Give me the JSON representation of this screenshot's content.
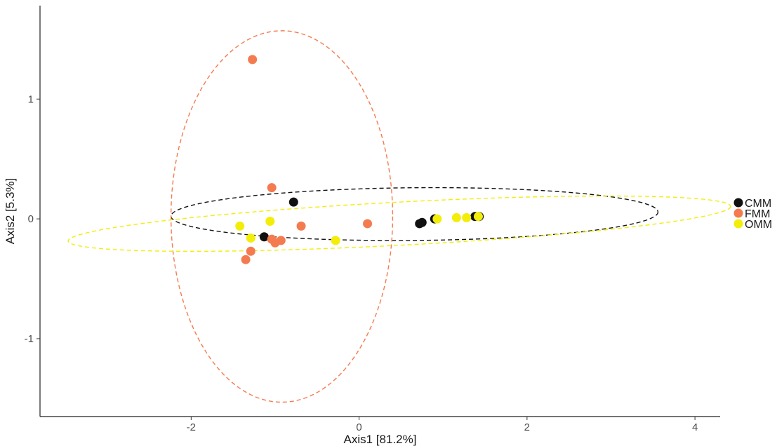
{
  "chart_data": {
    "type": "scatter",
    "title": "",
    "xlabel": "Axis1   [81.2%]",
    "ylabel": "Axis2   [5.3%]",
    "xlim": [
      -3.8,
      4.3
    ],
    "ylim": [
      -1.65,
      1.78
    ],
    "x_ticks": [
      -2,
      0,
      2,
      4
    ],
    "y_ticks": [
      -1,
      0,
      1
    ],
    "x_tick_labels": [
      "-2",
      "0",
      "2",
      "4"
    ],
    "y_tick_labels": [
      "-1",
      "0",
      "1"
    ],
    "grid": false,
    "legend_position": "right",
    "series": [
      {
        "name": "CMM",
        "color": "#111111",
        "points": [
          [
            -0.78,
            0.14
          ],
          [
            -1.13,
            -0.15
          ],
          [
            0.72,
            -0.04
          ],
          [
            0.75,
            -0.03
          ],
          [
            0.9,
            0.0
          ],
          [
            1.38,
            0.02
          ],
          [
            1.43,
            0.02
          ]
        ],
        "ellipse": {
          "cx": 0.66,
          "cy": 0.04,
          "rx": 2.9,
          "ry": 0.22,
          "angle_deg": 0.5
        }
      },
      {
        "name": "FMM",
        "color": "#F47B50",
        "points": [
          [
            -1.27,
            1.33
          ],
          [
            -1.04,
            0.26
          ],
          [
            -0.69,
            -0.06
          ],
          [
            0.1,
            -0.04
          ],
          [
            -1.04,
            -0.17
          ],
          [
            -1.0,
            -0.2
          ],
          [
            -0.93,
            -0.18
          ],
          [
            -1.29,
            -0.27
          ],
          [
            -1.35,
            -0.34
          ]
        ],
        "ellipse": {
          "cx": -0.92,
          "cy": 0.02,
          "rx": 1.32,
          "ry": 1.55,
          "angle_deg": 0
        }
      },
      {
        "name": "OMM",
        "color": "#F2EE0A",
        "points": [
          [
            -1.42,
            -0.06
          ],
          [
            -1.29,
            -0.16
          ],
          [
            -1.06,
            -0.02
          ],
          [
            -0.28,
            -0.18
          ],
          [
            0.93,
            0.0
          ],
          [
            1.16,
            0.01
          ],
          [
            1.28,
            0.01
          ],
          [
            1.42,
            0.02
          ]
        ],
        "ellipse": {
          "cx": 0.48,
          "cy": -0.04,
          "rx": 3.95,
          "ry": 0.18,
          "angle_deg": 3
        }
      }
    ]
  }
}
